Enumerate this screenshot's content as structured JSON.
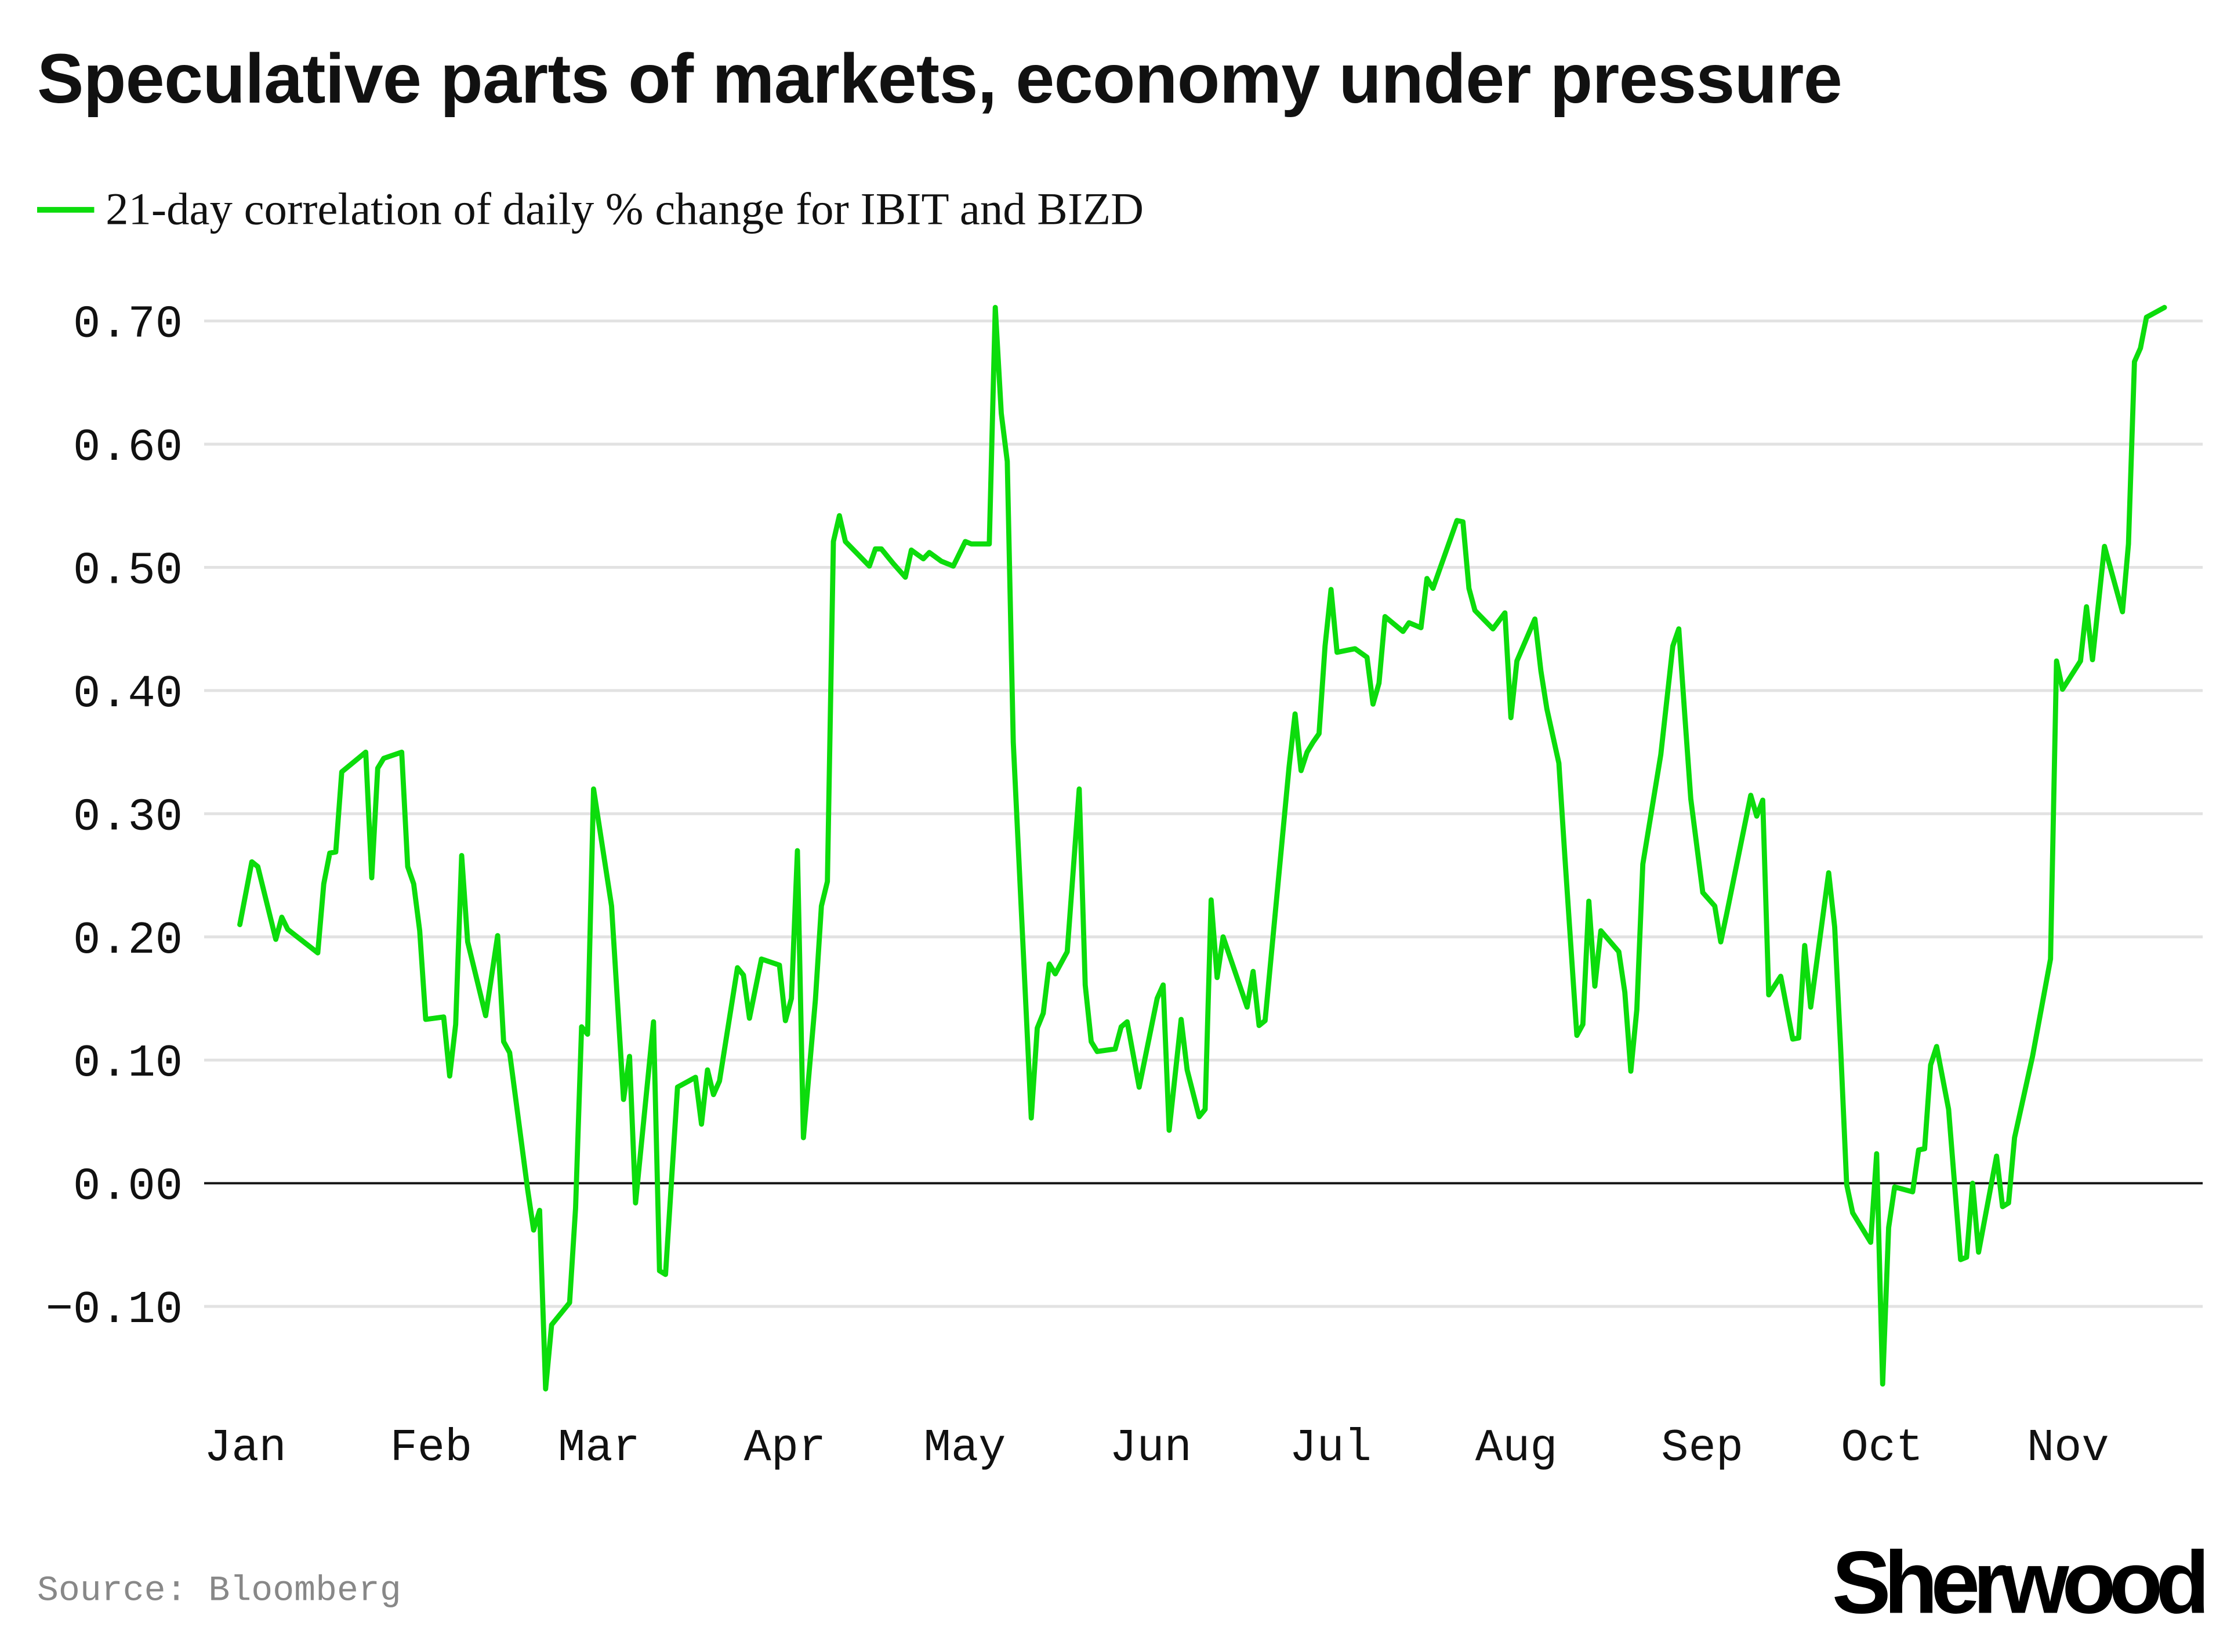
{
  "header": {
    "title": "Speculative parts of markets, economy under pressure"
  },
  "footer": {
    "source": "Source: Bloomberg",
    "logo": "Sherwood"
  },
  "chart_data": {
    "type": "line",
    "title": "Speculative parts of markets, economy under pressure",
    "xlabel": "",
    "ylabel": "",
    "ylim": [
      -0.17,
      0.72
    ],
    "y_ticks": [
      "0.70",
      "0.60",
      "0.50",
      "0.40",
      "0.30",
      "0.20",
      "0.10",
      "0.00",
      "−0.10"
    ],
    "y_tick_values": [
      0.7,
      0.6,
      0.5,
      0.4,
      0.3,
      0.2,
      0.1,
      0.0,
      -0.1
    ],
    "x_ticks": [
      "Jan",
      "Feb",
      "Mar",
      "Apr",
      "May",
      "Jun",
      "Jul",
      "Aug",
      "Sep",
      "Oct",
      "Nov"
    ],
    "x_tick_dates": [
      "01-01",
      "02-01",
      "03-01",
      "04-01",
      "05-01",
      "06-01",
      "07-01",
      "08-01",
      "09-01",
      "10-01",
      "11-01"
    ],
    "grid": "horizontal",
    "zero_line": true,
    "legend_position": "top-left",
    "series": [
      {
        "name": "21-day correlation of daily % change for IBIT and BIZD",
        "color": "#0cdc0c",
        "points": [
          [
            "01-02",
            0.21
          ],
          [
            "01-04",
            0.261
          ],
          [
            "01-05",
            0.257
          ],
          [
            "01-08",
            0.198
          ],
          [
            "01-09",
            0.216
          ],
          [
            "01-10",
            0.206
          ],
          [
            "01-15",
            0.187
          ],
          [
            "01-16",
            0.243
          ],
          [
            "01-17",
            0.268
          ],
          [
            "01-18",
            0.269
          ],
          [
            "01-19",
            0.334
          ],
          [
            "01-23",
            0.35
          ],
          [
            "01-24",
            0.248
          ],
          [
            "01-25",
            0.337
          ],
          [
            "01-26",
            0.345
          ],
          [
            "01-29",
            0.35
          ],
          [
            "01-30",
            0.257
          ],
          [
            "01-31",
            0.243
          ],
          [
            "02-01",
            0.205
          ],
          [
            "02-02",
            0.133
          ],
          [
            "02-05",
            0.135
          ],
          [
            "02-06",
            0.087
          ],
          [
            "02-07",
            0.129
          ],
          [
            "02-08",
            0.266
          ],
          [
            "02-09",
            0.196
          ],
          [
            "02-12",
            0.136
          ],
          [
            "02-14",
            0.201
          ],
          [
            "02-15",
            0.115
          ],
          [
            "02-16",
            0.106
          ],
          [
            "02-19",
            -0.005
          ],
          [
            "02-20",
            -0.038
          ],
          [
            "02-21",
            -0.022
          ],
          [
            "02-22",
            -0.167
          ],
          [
            "02-23",
            -0.115
          ],
          [
            "02-26",
            -0.097
          ],
          [
            "02-27",
            -0.02
          ],
          [
            "02-28",
            0.127
          ],
          [
            "03-01",
            0.121
          ],
          [
            "03-02",
            0.32
          ],
          [
            "03-05",
            0.225
          ],
          [
            "03-07",
            0.068
          ],
          [
            "03-08",
            0.103
          ],
          [
            "03-09",
            -0.016
          ],
          [
            "03-12",
            0.131
          ],
          [
            "03-13",
            -0.071
          ],
          [
            "03-14",
            -0.074
          ],
          [
            "03-16",
            0.078
          ],
          [
            "03-19",
            0.086
          ],
          [
            "03-20",
            0.048
          ],
          [
            "03-21",
            0.092
          ],
          [
            "03-22",
            0.072
          ],
          [
            "03-23",
            0.083
          ],
          [
            "03-26",
            0.175
          ],
          [
            "03-27",
            0.169
          ],
          [
            "03-28",
            0.134
          ],
          [
            "03-30",
            0.182
          ],
          [
            "04-02",
            0.177
          ],
          [
            "04-03",
            0.132
          ],
          [
            "04-04",
            0.15
          ],
          [
            "04-05",
            0.27
          ],
          [
            "04-06",
            0.037
          ],
          [
            "04-08",
            0.149
          ],
          [
            "04-09",
            0.225
          ],
          [
            "04-10",
            0.245
          ],
          [
            "04-11",
            0.521
          ],
          [
            "04-12",
            0.542
          ],
          [
            "04-13",
            0.521
          ],
          [
            "04-15",
            0.511
          ],
          [
            "04-17",
            0.501
          ],
          [
            "04-18",
            0.515
          ],
          [
            "04-19",
            0.515
          ],
          [
            "04-21",
            0.503
          ],
          [
            "04-23",
            0.492
          ],
          [
            "04-24",
            0.514
          ],
          [
            "04-26",
            0.507
          ],
          [
            "04-27",
            0.512
          ],
          [
            "04-29",
            0.505
          ],
          [
            "05-01",
            0.501
          ],
          [
            "05-03",
            0.521
          ],
          [
            "05-04",
            0.519
          ],
          [
            "05-07",
            0.519
          ],
          [
            "05-08",
            0.711
          ],
          [
            "05-09",
            0.625
          ],
          [
            "05-10",
            0.586
          ],
          [
            "05-11",
            0.358
          ],
          [
            "05-14",
            0.053
          ],
          [
            "05-15",
            0.126
          ],
          [
            "05-16",
            0.138
          ],
          [
            "05-17",
            0.178
          ],
          [
            "05-18",
            0.17
          ],
          [
            "05-20",
            0.188
          ],
          [
            "05-22",
            0.32
          ],
          [
            "05-23",
            0.161
          ],
          [
            "05-24",
            0.115
          ],
          [
            "05-25",
            0.107
          ],
          [
            "05-28",
            0.109
          ],
          [
            "05-29",
            0.127
          ],
          [
            "05-30",
            0.131
          ],
          [
            "06-01",
            0.078
          ],
          [
            "06-04",
            0.15
          ],
          [
            "06-05",
            0.161
          ],
          [
            "06-06",
            0.043
          ],
          [
            "06-08",
            0.133
          ],
          [
            "06-09",
            0.092
          ],
          [
            "06-11",
            0.054
          ],
          [
            "06-12",
            0.06
          ],
          [
            "06-13",
            0.23
          ],
          [
            "06-14",
            0.167
          ],
          [
            "06-15",
            0.2
          ],
          [
            "06-19",
            0.143
          ],
          [
            "06-20",
            0.172
          ],
          [
            "06-21",
            0.128
          ],
          [
            "06-22",
            0.132
          ],
          [
            "06-26",
            0.338
          ],
          [
            "06-27",
            0.381
          ],
          [
            "06-28",
            0.335
          ],
          [
            "06-29",
            0.35
          ],
          [
            "06-30",
            0.358
          ],
          [
            "07-01",
            0.365
          ],
          [
            "07-02",
            0.436
          ],
          [
            "07-03",
            0.482
          ],
          [
            "07-04",
            0.431
          ],
          [
            "07-06",
            0.433
          ],
          [
            "07-07",
            0.434
          ],
          [
            "07-09",
            0.427
          ],
          [
            "07-10",
            0.389
          ],
          [
            "07-11",
            0.406
          ],
          [
            "07-12",
            0.46
          ],
          [
            "07-15",
            0.448
          ],
          [
            "07-16",
            0.455
          ],
          [
            "07-18",
            0.451
          ],
          [
            "07-19",
            0.491
          ],
          [
            "07-20",
            0.483
          ],
          [
            "07-24",
            0.538
          ],
          [
            "07-25",
            0.537
          ],
          [
            "07-26",
            0.483
          ],
          [
            "07-27",
            0.465
          ],
          [
            "07-30",
            0.45
          ],
          [
            "08-01",
            0.463
          ],
          [
            "08-02",
            0.378
          ],
          [
            "08-03",
            0.424
          ],
          [
            "08-06",
            0.458
          ],
          [
            "08-07",
            0.416
          ],
          [
            "08-08",
            0.385
          ],
          [
            "08-10",
            0.341
          ],
          [
            "08-11",
            0.265
          ],
          [
            "08-13",
            0.12
          ],
          [
            "08-14",
            0.129
          ],
          [
            "08-15",
            0.229
          ],
          [
            "08-16",
            0.16
          ],
          [
            "08-17",
            0.205
          ],
          [
            "08-20",
            0.188
          ],
          [
            "08-21",
            0.155
          ],
          [
            "08-22",
            0.091
          ],
          [
            "08-23",
            0.141
          ],
          [
            "08-24",
            0.259
          ],
          [
            "08-27",
            0.348
          ],
          [
            "08-29",
            0.436
          ],
          [
            "08-30",
            0.45
          ],
          [
            "08-31",
            0.38
          ],
          [
            "09-01",
            0.312
          ],
          [
            "09-03",
            0.236
          ],
          [
            "09-05",
            0.225
          ],
          [
            "09-06",
            0.196
          ],
          [
            "09-07",
            0.219
          ],
          [
            "09-11",
            0.315
          ],
          [
            "09-12",
            0.298
          ],
          [
            "09-13",
            0.311
          ],
          [
            "09-14",
            0.153
          ],
          [
            "09-16",
            0.168
          ],
          [
            "09-18",
            0.117
          ],
          [
            "09-19",
            0.118
          ],
          [
            "09-20",
            0.193
          ],
          [
            "09-21",
            0.143
          ],
          [
            "09-24",
            0.252
          ],
          [
            "09-25",
            0.208
          ],
          [
            "09-26",
            0.109
          ],
          [
            "09-27",
            -0.001
          ],
          [
            "09-28",
            -0.024
          ],
          [
            "10-01",
            -0.048
          ],
          [
            "10-02",
            0.024
          ],
          [
            "10-03",
            -0.163
          ],
          [
            "10-04",
            -0.036
          ],
          [
            "10-05",
            -0.003
          ],
          [
            "10-08",
            -0.007
          ],
          [
            "10-09",
            0.027
          ],
          [
            "10-10",
            0.028
          ],
          [
            "10-11",
            0.096
          ],
          [
            "10-12",
            0.111
          ],
          [
            "10-14",
            0.06
          ],
          [
            "10-16",
            -0.062
          ],
          [
            "10-17",
            -0.06
          ],
          [
            "10-18",
            0.0
          ],
          [
            "10-19",
            -0.056
          ],
          [
            "10-22",
            0.022
          ],
          [
            "10-23",
            -0.019
          ],
          [
            "10-24",
            -0.016
          ],
          [
            "10-25",
            0.037
          ],
          [
            "10-28",
            0.103
          ],
          [
            "10-31",
            0.182
          ],
          [
            "11-01",
            0.424
          ],
          [
            "11-02",
            0.401
          ],
          [
            "11-05",
            0.424
          ],
          [
            "11-06",
            0.468
          ],
          [
            "11-07",
            0.425
          ],
          [
            "11-09",
            0.517
          ],
          [
            "11-12",
            0.464
          ],
          [
            "11-13",
            0.519
          ],
          [
            "11-14",
            0.667
          ],
          [
            "11-15",
            0.678
          ],
          [
            "11-16",
            0.703
          ],
          [
            "11-19",
            0.711
          ]
        ]
      }
    ]
  }
}
